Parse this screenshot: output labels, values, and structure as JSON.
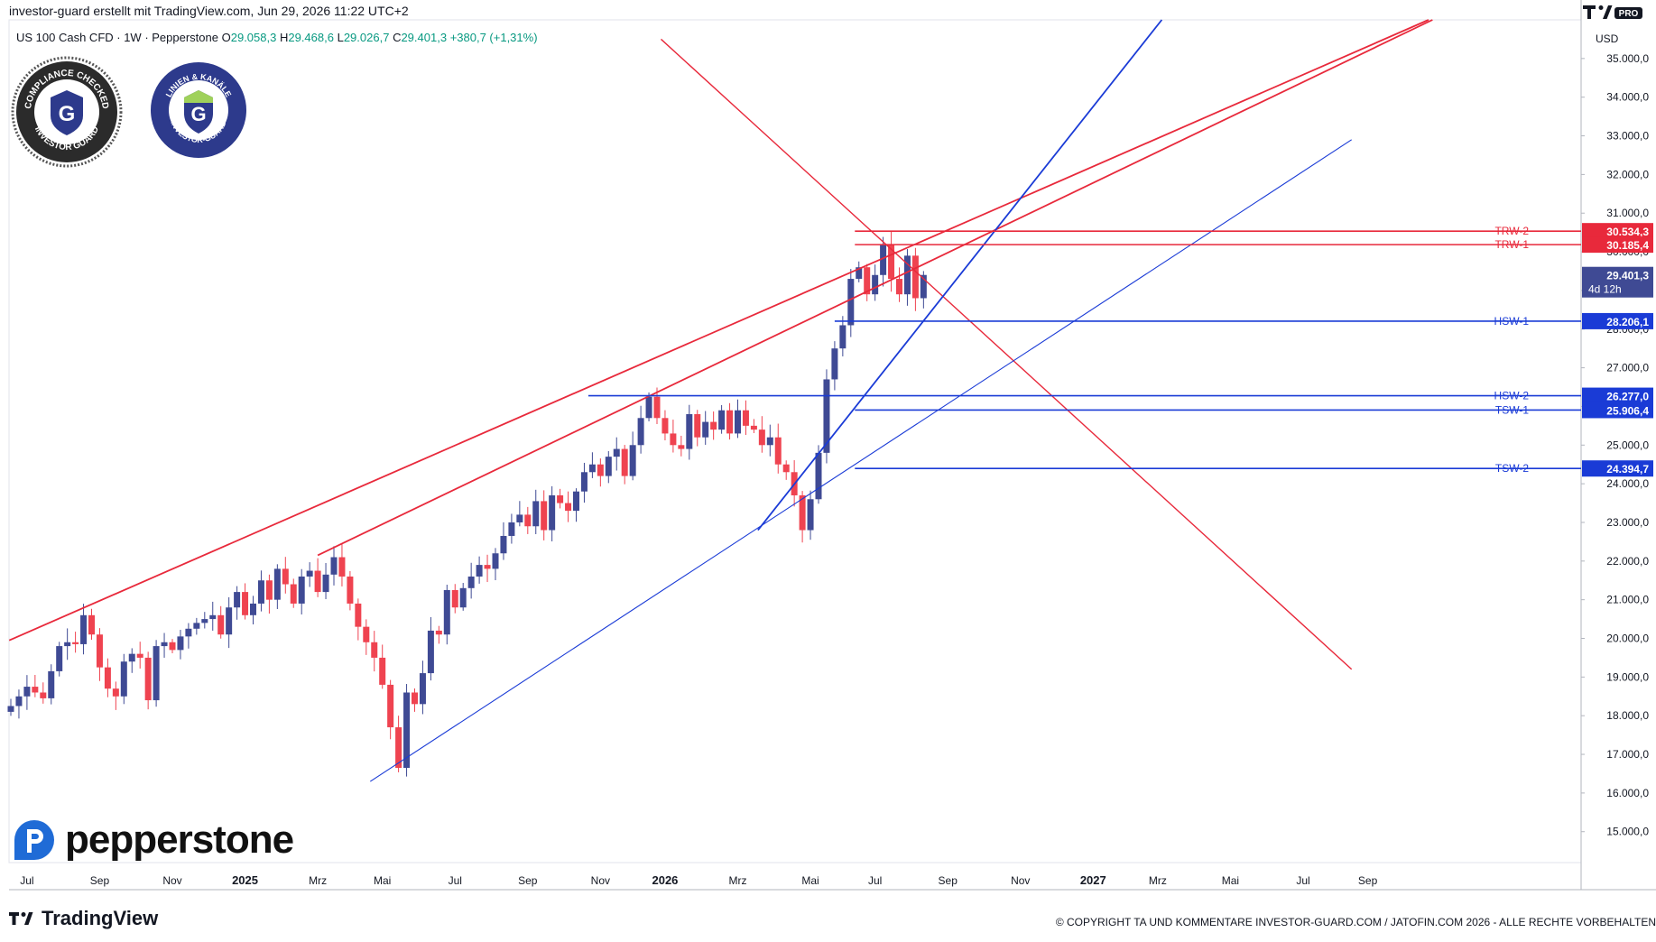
{
  "header": {
    "attribution": "investor-guard erstellt mit TradingView.com, Jun 29, 2026 11:22 UTC+2",
    "symbol": "US 100 Cash CFD · 1W · Pepperstone",
    "open_label": "O",
    "open": "29.058,3",
    "high_label": "H",
    "high": "29.468,6",
    "low_label": "L",
    "low": "29.026,7",
    "close_label": "C",
    "close": "29.401,3",
    "change": "+380,7 (+1,31%)",
    "currency": "USD",
    "tv_logo_text": "PRO"
  },
  "badges": {
    "compliance": "COMPLIANCE CHECKED · INVESTOR GUARD",
    "linien": "LINIEN & KANÄLE · INVESTOR-GUARD"
  },
  "brand": {
    "pepperstone": "pepperstone",
    "tradingview": "TradingView"
  },
  "copyright": "© COPYRIGHT TA UND KOMMENTARE INVESTOR-GUARD.COM / JATOFIN.COM 2026 - ALLE RECHTE VORBEHALTEN",
  "colors": {
    "up": "#3f4a94",
    "down": "#ef4350",
    "resistance": "#e8293b",
    "support": "#1a3bd6",
    "price_tag": "#3f4a94"
  },
  "chart_data": {
    "type": "candlestick",
    "timeframe": "1W",
    "ylim": [
      14200,
      36000
    ],
    "y_ticks": [
      15000,
      16000,
      17000,
      18000,
      19000,
      20000,
      21000,
      22000,
      23000,
      24000,
      25000,
      26000,
      27000,
      28000,
      29000,
      30000,
      31000,
      32000,
      33000,
      34000,
      35000
    ],
    "y_tick_labels": [
      "15.000,0",
      "16.000,0",
      "17.000,0",
      "18.000,0",
      "19.000,0",
      "20.000,0",
      "21.000,0",
      "22.000,0",
      "23.000,0",
      "24.000,0",
      "25.000,0",
      "26.000,0",
      "27.000,0",
      "28.000,0",
      "29.000,0",
      "30.000,0",
      "31.000,0",
      "32.000,0",
      "33.000,0",
      "34.000,0",
      "35.000,0"
    ],
    "x_ticks": [
      {
        "label": "Jul",
        "week": 2,
        "bold": false
      },
      {
        "label": "Sep",
        "week": 11,
        "bold": false
      },
      {
        "label": "Nov",
        "week": 20,
        "bold": false
      },
      {
        "label": "2025",
        "week": 29,
        "bold": true
      },
      {
        "label": "Mrz",
        "week": 38,
        "bold": false
      },
      {
        "label": "Mai",
        "week": 46,
        "bold": false
      },
      {
        "label": "Jul",
        "week": 55,
        "bold": false
      },
      {
        "label": "Sep",
        "week": 64,
        "bold": false
      },
      {
        "label": "Nov",
        "week": 73,
        "bold": false
      },
      {
        "label": "2026",
        "week": 81,
        "bold": true
      },
      {
        "label": "Mrz",
        "week": 90,
        "bold": false
      },
      {
        "label": "Mai",
        "week": 99,
        "bold": false
      },
      {
        "label": "Jul",
        "week": 107,
        "bold": false
      },
      {
        "label": "Sep",
        "week": 116,
        "bold": false
      },
      {
        "label": "Nov",
        "week": 125,
        "bold": false
      },
      {
        "label": "2027",
        "week": 134,
        "bold": true
      },
      {
        "label": "Mrz",
        "week": 142,
        "bold": false
      },
      {
        "label": "Mai",
        "week": 151,
        "bold": false
      },
      {
        "label": "Jul",
        "week": 160,
        "bold": false
      },
      {
        "label": "Sep",
        "week": 168,
        "bold": false
      }
    ],
    "closes": [
      18250,
      18500,
      18750,
      18600,
      18450,
      19150,
      19800,
      19900,
      19850,
      20600,
      20100,
      19250,
      18700,
      18500,
      19400,
      19600,
      19500,
      18400,
      19800,
      19900,
      19700,
      20050,
      20250,
      20400,
      20500,
      20600,
      20100,
      20800,
      21200,
      20600,
      20900,
      21500,
      21000,
      21800,
      21400,
      20900,
      21600,
      21750,
      21200,
      21650,
      22100,
      21600,
      20900,
      20300,
      19900,
      19500,
      18800,
      17700,
      16650,
      18600,
      18300,
      19100,
      20200,
      20100,
      21250,
      20800,
      21300,
      21600,
      21900,
      21800,
      22200,
      22650,
      23000,
      23200,
      22900,
      23550,
      22800,
      23700,
      23500,
      23300,
      23800,
      24300,
      24500,
      24200,
      24700,
      24900,
      24200,
      25000,
      25700,
      26250,
      25700,
      25300,
      25000,
      24900,
      25800,
      25200,
      25600,
      25400,
      25900,
      25300,
      25900,
      25500,
      25400,
      25000,
      25200,
      24500,
      24300,
      23700,
      22800,
      23600,
      24800,
      26700,
      27500,
      28100,
      29300,
      29600,
      28900,
      29400,
      30200,
      29300,
      28900,
      29900,
      28800,
      29401
    ]
  },
  "levels": [
    {
      "label": "TRW-2",
      "value": 30534.3,
      "value_text": "30.534,3",
      "kind": "resistance"
    },
    {
      "label": "TRW-1",
      "value": 30185.4,
      "value_text": "30.185,4",
      "kind": "resistance"
    },
    {
      "label": "HSW-1",
      "value": 28206.1,
      "value_text": "28.206,1",
      "kind": "support"
    },
    {
      "label": "HSW-2",
      "value": 26277.0,
      "value_text": "26.277,0",
      "kind": "support"
    },
    {
      "label": "TSW-1",
      "value": 25906.4,
      "value_text": "25.906,4",
      "kind": "support"
    },
    {
      "label": "TSW-2",
      "value": 24394.7,
      "value_text": "24.394,7",
      "kind": "support"
    }
  ],
  "last_price": {
    "value": 29401.3,
    "value_text": "29.401,3",
    "countdown": "4d 12h"
  }
}
